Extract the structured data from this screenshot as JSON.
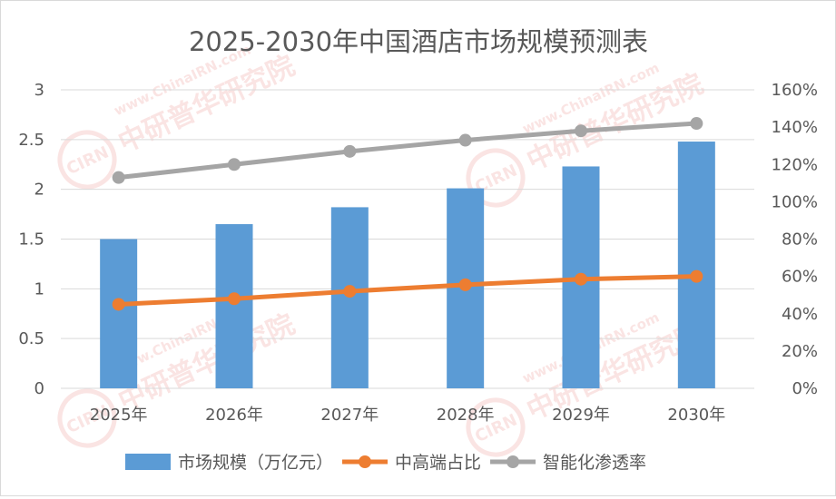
{
  "chart_data": {
    "type": "bar",
    "title": "2025-2030年中国酒店市场规模预测表",
    "categories": [
      "2025年",
      "2026年",
      "2027年",
      "2028年",
      "2029年",
      "2030年"
    ],
    "series": [
      {
        "name": "市场规模（万亿元）",
        "type": "bar",
        "axis": "left",
        "color": "#5b9bd5",
        "values": [
          1.5,
          1.65,
          1.82,
          2.01,
          2.23,
          2.48
        ]
      },
      {
        "name": "中高端占比",
        "type": "line",
        "axis": "right",
        "color": "#ed7d31",
        "values": [
          0.45,
          0.48,
          0.52,
          0.555,
          0.585,
          0.6
        ]
      },
      {
        "name": "智能化渗透率",
        "type": "line",
        "axis": "right",
        "color": "#a5a5a5",
        "values": [
          1.13,
          1.2,
          1.27,
          1.33,
          1.38,
          1.42
        ]
      }
    ],
    "y_left": {
      "lim": [
        0,
        3
      ],
      "ticks": [
        "0",
        "0.5",
        "1",
        "1.5",
        "2",
        "2.5",
        "3"
      ]
    },
    "y_right": {
      "lim": [
        0,
        1.6
      ],
      "ticks": [
        "0%",
        "20%",
        "40%",
        "60%",
        "80%",
        "100%",
        "120%",
        "140%",
        "160%"
      ]
    },
    "grid": true,
    "legend": "bottom"
  },
  "watermark": {
    "cn": "中研普华研究院",
    "url": "www.ChinaIRN.com",
    "logo": "CIRN"
  }
}
